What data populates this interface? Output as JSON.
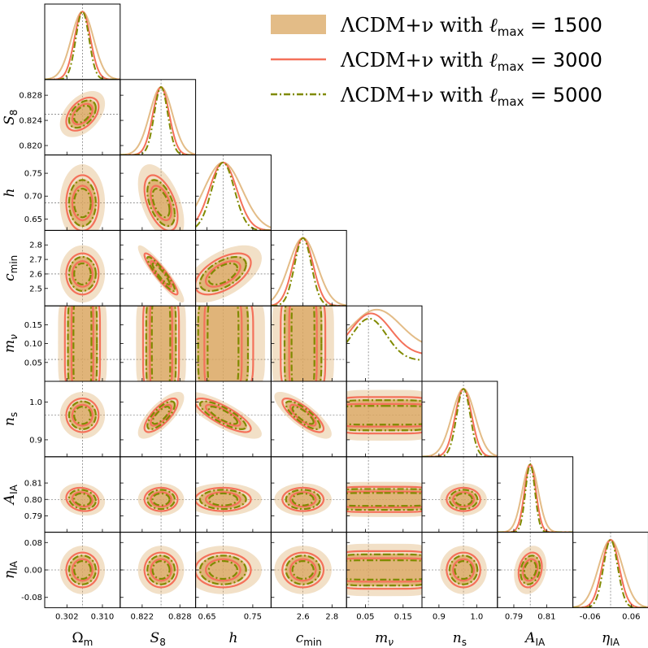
{
  "chart_data": {
    "type": "corner",
    "title": "",
    "params": [
      {
        "label": "Ωm",
        "range": [
          0.297,
          0.314
        ],
        "fid": 0.3055,
        "ticks": [
          "0.302",
          "0.310"
        ],
        "tick_vals": [
          0.302,
          0.31
        ],
        "sigma": 0.0018
      },
      {
        "label": "S8",
        "range": [
          0.8185,
          0.8305
        ],
        "fid": 0.825,
        "ticks": [
          "0.822",
          "0.828"
        ],
        "tick_vals": [
          0.822,
          0.828
        ],
        "sigma": 0.0013
      },
      {
        "label": "h",
        "range": [
          0.625,
          0.79
        ],
        "fid": 0.685,
        "ticks": [
          "0.65",
          "0.75"
        ],
        "tick_vals": [
          0.65,
          0.75
        ],
        "sigma": 0.03
      },
      {
        "label": "cmin",
        "range": [
          2.38,
          2.9
        ],
        "fid": 2.6,
        "ticks": [
          "2.6",
          "2.8"
        ],
        "tick_vals": [
          2.6,
          2.8
        ],
        "sigma": 0.07
      },
      {
        "label": "mν",
        "range": [
          0.0,
          0.2
        ],
        "fid": 0.058,
        "ticks": [
          "0.05",
          "0.15"
        ],
        "tick_vals": [
          0.05,
          0.15
        ],
        "sigma": 0.06
      },
      {
        "label": "ns",
        "range": [
          0.855,
          1.055
        ],
        "fid": 0.965,
        "ticks": [
          "0.9",
          "1.0"
        ],
        "tick_vals": [
          0.9,
          1.0
        ],
        "sigma": 0.022
      },
      {
        "label": "AIA",
        "range": [
          0.78,
          0.826
        ],
        "fid": 0.8,
        "ticks": [
          "0.79",
          "0.81"
        ],
        "tick_vals": [
          0.79,
          0.81
        ],
        "sigma": 0.0035
      },
      {
        "label": "ηIA",
        "range": [
          -0.11,
          0.11
        ],
        "fid": 0.0,
        "ticks": [
          "-0.06",
          "0.06"
        ],
        "tick_vals": [
          -0.06,
          0.06
        ],
        "sigma": 0.025
      }
    ],
    "y_ticks": [
      null,
      {
        "labels": [
          "0.820",
          "0.824",
          "0.828"
        ],
        "vals": [
          0.82,
          0.824,
          0.828
        ]
      },
      {
        "labels": [
          "0.65",
          "0.70",
          "0.75"
        ],
        "vals": [
          0.65,
          0.7,
          0.75
        ]
      },
      {
        "labels": [
          "2.5",
          "2.6",
          "2.7",
          "2.8"
        ],
        "vals": [
          2.5,
          2.6,
          2.7,
          2.8
        ]
      },
      {
        "labels": [
          "0.05",
          "0.10",
          "0.15"
        ],
        "vals": [
          0.05,
          0.1,
          0.15
        ]
      },
      {
        "labels": [
          "0.9",
          "1.0"
        ],
        "vals": [
          0.9,
          1.0
        ]
      },
      {
        "labels": [
          "0.79",
          "0.80",
          "0.81"
        ],
        "vals": [
          0.79,
          0.8,
          0.81
        ]
      },
      {
        "labels": [
          "-0.08",
          "0.00",
          "0.08"
        ],
        "vals": [
          -0.08,
          0.0,
          0.08
        ]
      }
    ],
    "series": [
      {
        "name": "ΛCDM+ν with ℓmax = 1500",
        "style": "filled",
        "color": "#d9a65f",
        "width_scale": 1.6
      },
      {
        "name": "ΛCDM+ν with ℓmax = 3000",
        "style": "solid",
        "color": "#f4715a",
        "width_scale": 1.15
      },
      {
        "name": "ΛCDM+ν with ℓmax = 5000",
        "style": "dashdot",
        "color": "#808a00",
        "width_scale": 0.95
      }
    ],
    "correlations": [
      {
        "pair": [
          "S8",
          "Ωm"
        ],
        "rho": 0.45
      },
      {
        "pair": [
          "h",
          "S8"
        ],
        "rho": -0.5
      },
      {
        "pair": [
          "cmin",
          "S8"
        ],
        "rho": -0.92
      },
      {
        "pair": [
          "cmin",
          "h"
        ],
        "rho": 0.55
      },
      {
        "pair": [
          "ns",
          "S8"
        ],
        "rho": 0.75
      },
      {
        "pair": [
          "ns",
          "h"
        ],
        "rho": -0.8
      },
      {
        "pair": [
          "ns",
          "cmin"
        ],
        "rho": -0.8
      },
      {
        "pair": [
          "AIA",
          "Ωm"
        ],
        "rho": -0.15
      },
      {
        "pair": [
          "ηIA",
          "AIA"
        ],
        "rho": 0.2
      }
    ],
    "legend_position": "top-right"
  }
}
